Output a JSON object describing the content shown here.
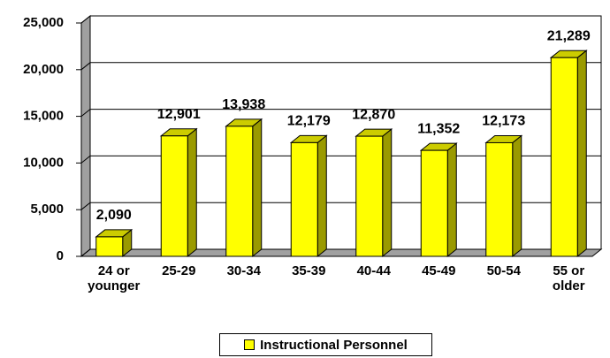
{
  "chart_data": {
    "type": "bar",
    "categories": [
      "24 or younger",
      "25-29",
      "30-34",
      "35-39",
      "40-44",
      "45-49",
      "50-54",
      "55 or older"
    ],
    "series": [
      {
        "name": "Instructional Personnel",
        "color": "#ffff00",
        "values": [
          2090,
          12901,
          13938,
          12179,
          12870,
          11352,
          12173,
          21289
        ],
        "value_labels": [
          "2,090",
          "12,901",
          "13,938",
          "12,179",
          "12,870",
          "11,352",
          "12,173",
          "21,289"
        ]
      }
    ],
    "ylim": [
      0,
      25000
    ],
    "yticks": [
      0,
      {
        "value": 5000,
        "label": "5,000"
      },
      {
        "value": 10000,
        "label": "10,000"
      },
      {
        "value": 15000,
        "label": "15,000"
      },
      {
        "value": 20000,
        "label": "20,000"
      },
      {
        "value": 25000,
        "label": "25,000"
      }
    ],
    "grid": true,
    "legend": "bottom"
  }
}
